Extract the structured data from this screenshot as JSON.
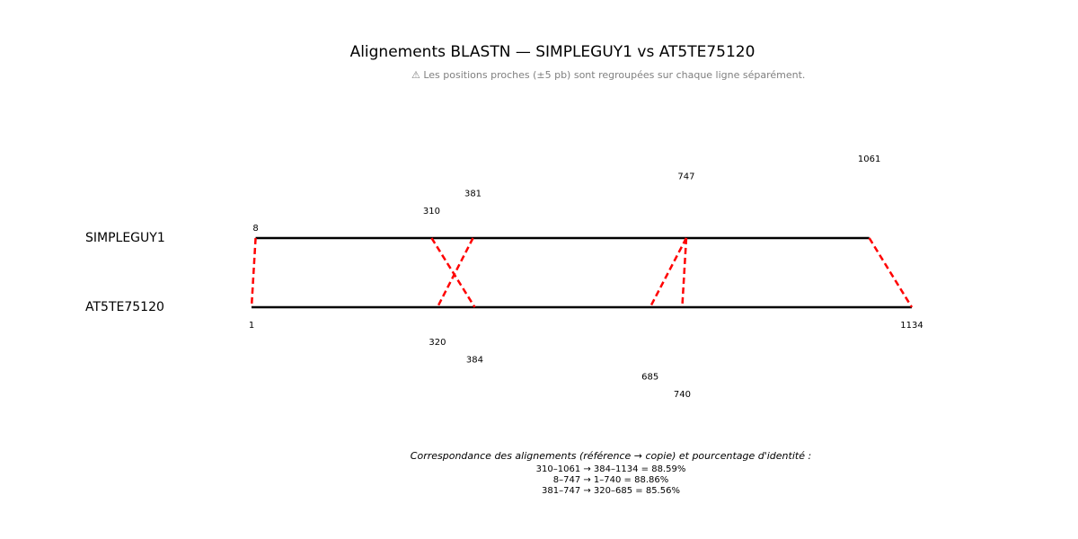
{
  "title": "Alignements BLASTN — SIMPLEGUY1 vs AT5TE75120",
  "subtitle": "⚠ Les positions proches (±5 pb) sont regroupées sur chaque ligne séparément.",
  "sequences": {
    "reference": {
      "name": "SIMPLEGUY1",
      "start": 8,
      "end": 1061
    },
    "copy": {
      "name": "AT5TE75120",
      "start": 1,
      "end": 1134
    }
  },
  "colors": {
    "sequence_line": "#000000",
    "alignment_link": "#ff0000",
    "subtitle": "#808080"
  },
  "alignments": [
    {
      "ref_start": 310,
      "ref_end": 1061,
      "copy_start": 384,
      "copy_end": 1134,
      "identity": "88.59%"
    },
    {
      "ref_start": 8,
      "ref_end": 747,
      "copy_start": 1,
      "copy_end": 740,
      "identity": "88.86%"
    },
    {
      "ref_start": 381,
      "ref_end": 747,
      "copy_start": 320,
      "copy_end": 685,
      "identity": "85.56%"
    }
  ],
  "ref_positions": [
    "8",
    "310",
    "381",
    "747",
    "1061"
  ],
  "copy_positions": [
    "1",
    "320",
    "384",
    "685",
    "740",
    "1134"
  ],
  "legend": {
    "title": "Correspondance des alignements (référence → copie) et pourcentage d'identité :",
    "lines": [
      "310–1061 → 384–1134 = 88.59%",
      "8–747 → 1–740 = 88.86%",
      "381–747 → 320–685 = 85.56%"
    ]
  }
}
